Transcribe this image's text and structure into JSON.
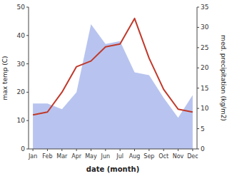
{
  "chart_data": {
    "type": "line",
    "categories": [
      "Jan",
      "Feb",
      "Mar",
      "Apr",
      "May",
      "Jun",
      "Jul",
      "Aug",
      "Sep",
      "Oct",
      "Nov",
      "Dec"
    ],
    "series": [
      {
        "type": "area",
        "color": "#b8c4ef",
        "values": [
          16,
          16,
          14,
          20,
          44,
          37,
          38,
          27,
          26,
          18,
          11,
          19
        ]
      },
      {
        "type": "line",
        "color": "#c0392b",
        "values": [
          12,
          13,
          20,
          29,
          31,
          36,
          37,
          46,
          32,
          21,
          14,
          13
        ]
      }
    ],
    "xlabel": "date (month)",
    "ylabel": "max temp (C)",
    "y2label": "med. precipitation (kg/m2)",
    "ylim": [
      0,
      50
    ],
    "yticks": [
      0,
      10,
      20,
      30,
      40,
      50
    ],
    "y2lim": [
      0,
      35
    ],
    "y2ticks": [
      0,
      5,
      10,
      15,
      20,
      25,
      30,
      35
    ],
    "grid": false
  }
}
